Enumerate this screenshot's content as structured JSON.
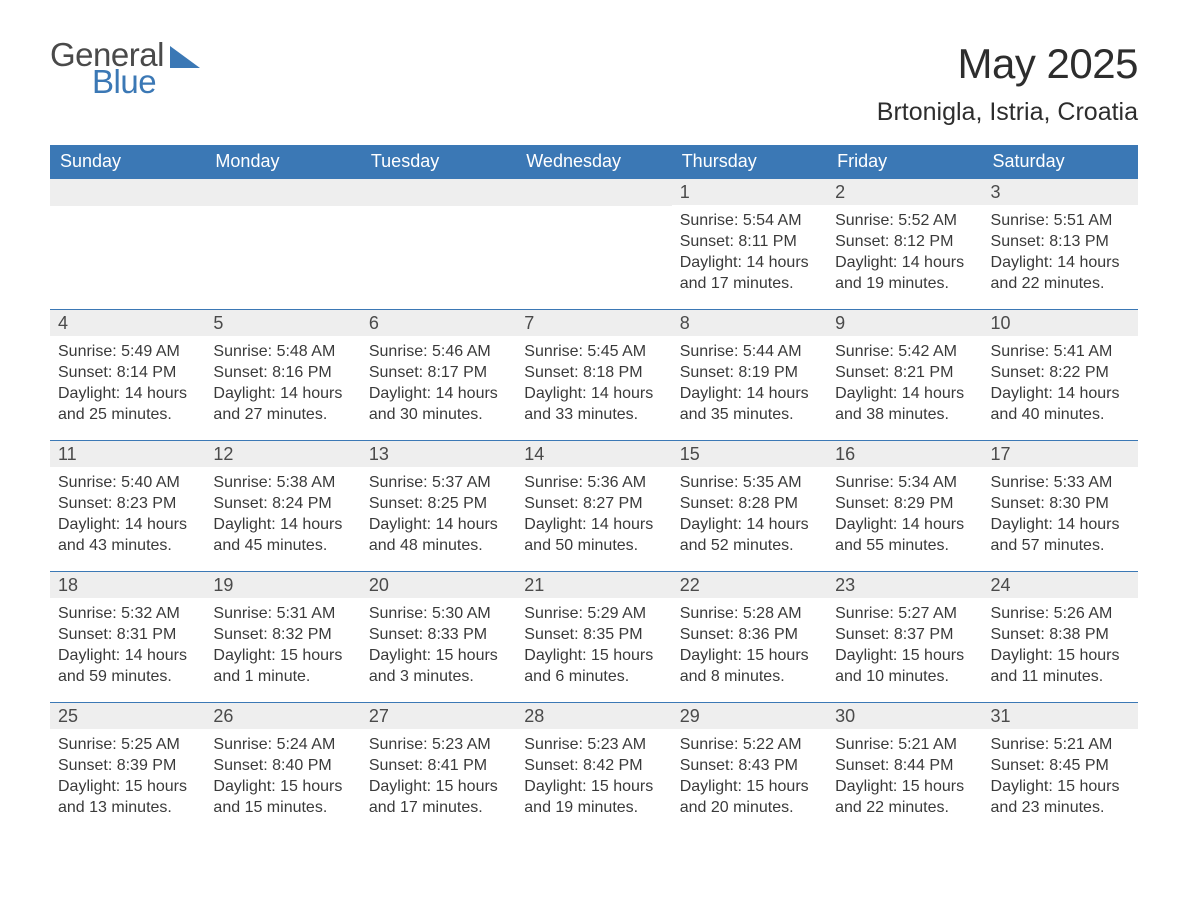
{
  "brand": {
    "part1": "General",
    "part2": "Blue",
    "triangle_color": "#3b78b5"
  },
  "title": "May 2025",
  "location": "Brtonigla, Istria, Croatia",
  "colors": {
    "header_bg": "#3b78b5",
    "header_text": "#ffffff",
    "day_number_bg": "#eeeeee",
    "body_text": "#3a3a3a",
    "row_border": "#3b78b5",
    "page_bg": "#ffffff"
  },
  "typography": {
    "month_title_fontsize": 42,
    "location_fontsize": 25,
    "weekday_fontsize": 18,
    "daynum_fontsize": 18,
    "body_fontsize": 16
  },
  "weekdays": [
    "Sunday",
    "Monday",
    "Tuesday",
    "Wednesday",
    "Thursday",
    "Friday",
    "Saturday"
  ],
  "weeks": [
    [
      null,
      null,
      null,
      null,
      {
        "n": "1",
        "sunrise": "Sunrise: 5:54 AM",
        "sunset": "Sunset: 8:11 PM",
        "daylight": "Daylight: 14 hours and 17 minutes."
      },
      {
        "n": "2",
        "sunrise": "Sunrise: 5:52 AM",
        "sunset": "Sunset: 8:12 PM",
        "daylight": "Daylight: 14 hours and 19 minutes."
      },
      {
        "n": "3",
        "sunrise": "Sunrise: 5:51 AM",
        "sunset": "Sunset: 8:13 PM",
        "daylight": "Daylight: 14 hours and 22 minutes."
      }
    ],
    [
      {
        "n": "4",
        "sunrise": "Sunrise: 5:49 AM",
        "sunset": "Sunset: 8:14 PM",
        "daylight": "Daylight: 14 hours and 25 minutes."
      },
      {
        "n": "5",
        "sunrise": "Sunrise: 5:48 AM",
        "sunset": "Sunset: 8:16 PM",
        "daylight": "Daylight: 14 hours and 27 minutes."
      },
      {
        "n": "6",
        "sunrise": "Sunrise: 5:46 AM",
        "sunset": "Sunset: 8:17 PM",
        "daylight": "Daylight: 14 hours and 30 minutes."
      },
      {
        "n": "7",
        "sunrise": "Sunrise: 5:45 AM",
        "sunset": "Sunset: 8:18 PM",
        "daylight": "Daylight: 14 hours and 33 minutes."
      },
      {
        "n": "8",
        "sunrise": "Sunrise: 5:44 AM",
        "sunset": "Sunset: 8:19 PM",
        "daylight": "Daylight: 14 hours and 35 minutes."
      },
      {
        "n": "9",
        "sunrise": "Sunrise: 5:42 AM",
        "sunset": "Sunset: 8:21 PM",
        "daylight": "Daylight: 14 hours and 38 minutes."
      },
      {
        "n": "10",
        "sunrise": "Sunrise: 5:41 AM",
        "sunset": "Sunset: 8:22 PM",
        "daylight": "Daylight: 14 hours and 40 minutes."
      }
    ],
    [
      {
        "n": "11",
        "sunrise": "Sunrise: 5:40 AM",
        "sunset": "Sunset: 8:23 PM",
        "daylight": "Daylight: 14 hours and 43 minutes."
      },
      {
        "n": "12",
        "sunrise": "Sunrise: 5:38 AM",
        "sunset": "Sunset: 8:24 PM",
        "daylight": "Daylight: 14 hours and 45 minutes."
      },
      {
        "n": "13",
        "sunrise": "Sunrise: 5:37 AM",
        "sunset": "Sunset: 8:25 PM",
        "daylight": "Daylight: 14 hours and 48 minutes."
      },
      {
        "n": "14",
        "sunrise": "Sunrise: 5:36 AM",
        "sunset": "Sunset: 8:27 PM",
        "daylight": "Daylight: 14 hours and 50 minutes."
      },
      {
        "n": "15",
        "sunrise": "Sunrise: 5:35 AM",
        "sunset": "Sunset: 8:28 PM",
        "daylight": "Daylight: 14 hours and 52 minutes."
      },
      {
        "n": "16",
        "sunrise": "Sunrise: 5:34 AM",
        "sunset": "Sunset: 8:29 PM",
        "daylight": "Daylight: 14 hours and 55 minutes."
      },
      {
        "n": "17",
        "sunrise": "Sunrise: 5:33 AM",
        "sunset": "Sunset: 8:30 PM",
        "daylight": "Daylight: 14 hours and 57 minutes."
      }
    ],
    [
      {
        "n": "18",
        "sunrise": "Sunrise: 5:32 AM",
        "sunset": "Sunset: 8:31 PM",
        "daylight": "Daylight: 14 hours and 59 minutes."
      },
      {
        "n": "19",
        "sunrise": "Sunrise: 5:31 AM",
        "sunset": "Sunset: 8:32 PM",
        "daylight": "Daylight: 15 hours and 1 minute."
      },
      {
        "n": "20",
        "sunrise": "Sunrise: 5:30 AM",
        "sunset": "Sunset: 8:33 PM",
        "daylight": "Daylight: 15 hours and 3 minutes."
      },
      {
        "n": "21",
        "sunrise": "Sunrise: 5:29 AM",
        "sunset": "Sunset: 8:35 PM",
        "daylight": "Daylight: 15 hours and 6 minutes."
      },
      {
        "n": "22",
        "sunrise": "Sunrise: 5:28 AM",
        "sunset": "Sunset: 8:36 PM",
        "daylight": "Daylight: 15 hours and 8 minutes."
      },
      {
        "n": "23",
        "sunrise": "Sunrise: 5:27 AM",
        "sunset": "Sunset: 8:37 PM",
        "daylight": "Daylight: 15 hours and 10 minutes."
      },
      {
        "n": "24",
        "sunrise": "Sunrise: 5:26 AM",
        "sunset": "Sunset: 8:38 PM",
        "daylight": "Daylight: 15 hours and 11 minutes."
      }
    ],
    [
      {
        "n": "25",
        "sunrise": "Sunrise: 5:25 AM",
        "sunset": "Sunset: 8:39 PM",
        "daylight": "Daylight: 15 hours and 13 minutes."
      },
      {
        "n": "26",
        "sunrise": "Sunrise: 5:24 AM",
        "sunset": "Sunset: 8:40 PM",
        "daylight": "Daylight: 15 hours and 15 minutes."
      },
      {
        "n": "27",
        "sunrise": "Sunrise: 5:23 AM",
        "sunset": "Sunset: 8:41 PM",
        "daylight": "Daylight: 15 hours and 17 minutes."
      },
      {
        "n": "28",
        "sunrise": "Sunrise: 5:23 AM",
        "sunset": "Sunset: 8:42 PM",
        "daylight": "Daylight: 15 hours and 19 minutes."
      },
      {
        "n": "29",
        "sunrise": "Sunrise: 5:22 AM",
        "sunset": "Sunset: 8:43 PM",
        "daylight": "Daylight: 15 hours and 20 minutes."
      },
      {
        "n": "30",
        "sunrise": "Sunrise: 5:21 AM",
        "sunset": "Sunset: 8:44 PM",
        "daylight": "Daylight: 15 hours and 22 minutes."
      },
      {
        "n": "31",
        "sunrise": "Sunrise: 5:21 AM",
        "sunset": "Sunset: 8:45 PM",
        "daylight": "Daylight: 15 hours and 23 minutes."
      }
    ]
  ]
}
